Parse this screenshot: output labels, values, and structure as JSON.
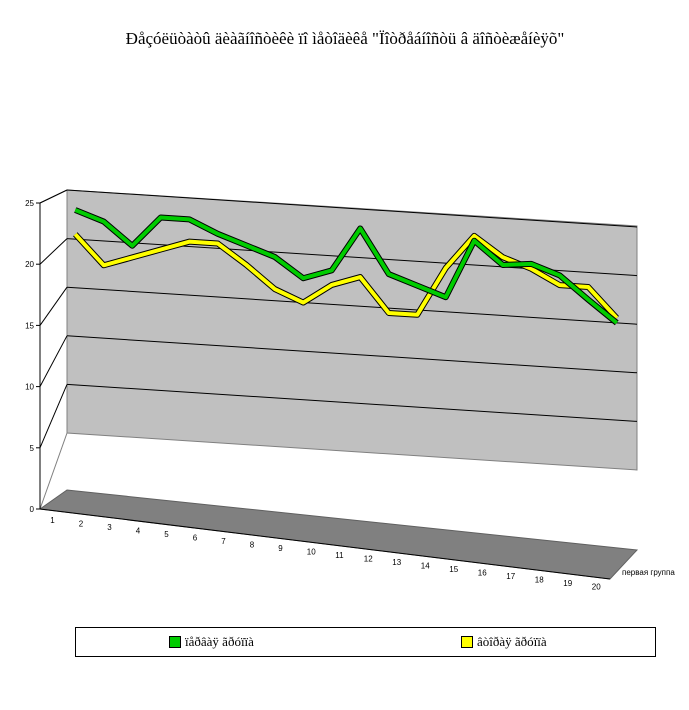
{
  "chart_data": {
    "type": "line",
    "title": "Ðåçóëüòàòû äèàãíîñòèêè ïî ìåòîäèêå \"Ïîòðåáíîñòü â äîñòèæåíèÿõ\"",
    "xlabel": "",
    "ylabel": "",
    "ylim": [
      0,
      25
    ],
    "yticks": [
      "0",
      "5",
      "10",
      "15",
      "20",
      "25"
    ],
    "categories": [
      "1",
      "2",
      "3",
      "4",
      "5",
      "6",
      "7",
      "8",
      "9",
      "10",
      "11",
      "12",
      "13",
      "14",
      "15",
      "16",
      "17",
      "18",
      "19",
      "20"
    ],
    "depth_label": "первая группа",
    "grid": true,
    "legend_position": "bottom",
    "series": [
      {
        "name": "ïåðâàÿ ãðóïïà",
        "color": "#00cc00",
        "values": [
          23,
          22,
          19.7,
          22.8,
          22.8,
          21.5,
          20.5,
          19.5,
          17.5,
          18.5,
          23,
          18.5,
          17.5,
          16.5,
          22.5,
          20.2,
          20.5,
          19.5,
          17.2,
          15
        ]
      },
      {
        "name": "âòîðàÿ ãðóïïà",
        "color": "#ffff00",
        "values": [
          20.5,
          17.5,
          18.5,
          19.5,
          20.5,
          20.5,
          18.5,
          16.2,
          15,
          17,
          18,
          14.5,
          14.5,
          19.5,
          23,
          21,
          20,
          18.5,
          18.5,
          15.5
        ]
      }
    ]
  }
}
